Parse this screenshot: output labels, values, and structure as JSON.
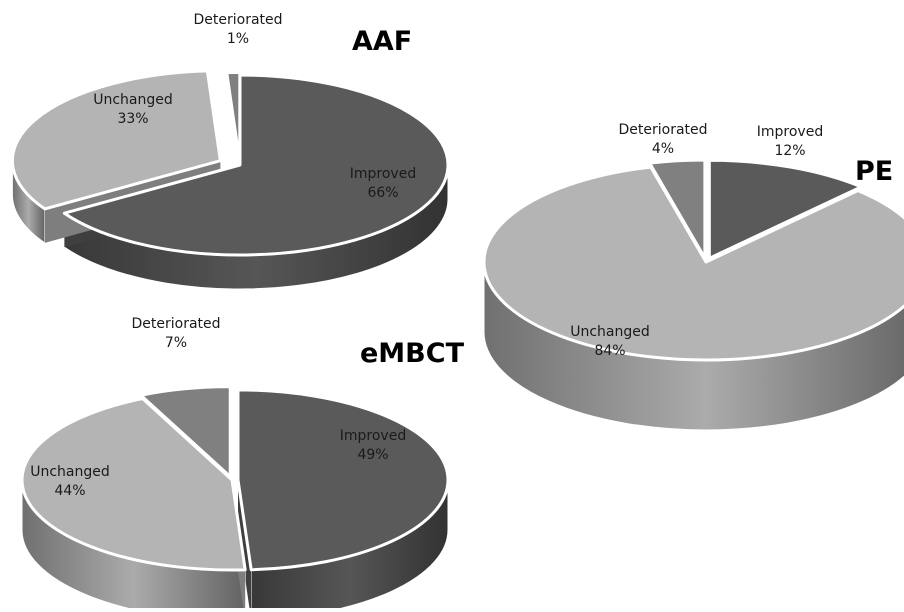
{
  "chart_data": [
    {
      "type": "pie",
      "title": "AAF",
      "slices": [
        {
          "name": "Improved",
          "value": 66,
          "value_label": "66%",
          "color": "#5a5a5a"
        },
        {
          "name": "Unchanged",
          "value": 33,
          "value_label": "33%",
          "color": "#b4b4b4"
        },
        {
          "name": "Deteriorated",
          "value": 1,
          "value_label": "1%",
          "color": "#808080"
        }
      ]
    },
    {
      "type": "pie",
      "title": "PE",
      "slices": [
        {
          "name": "Improved",
          "value": 12,
          "value_label": "12%",
          "color": "#5a5a5a"
        },
        {
          "name": "Unchanged",
          "value": 84,
          "value_label": "84%",
          "color": "#b4b4b4"
        },
        {
          "name": "Deteriorated",
          "value": 4,
          "value_label": "4%",
          "color": "#808080"
        }
      ]
    },
    {
      "type": "pie",
      "title": "eMBCT",
      "slices": [
        {
          "name": "Improved",
          "value": 49,
          "value_label": "49%",
          "color": "#5a5a5a"
        },
        {
          "name": "Unchanged",
          "value": 44,
          "value_label": "44%",
          "color": "#b4b4b4"
        },
        {
          "name": "Deteriorated",
          "value": 7,
          "value_label": "7%",
          "color": "#808080"
        }
      ]
    }
  ]
}
